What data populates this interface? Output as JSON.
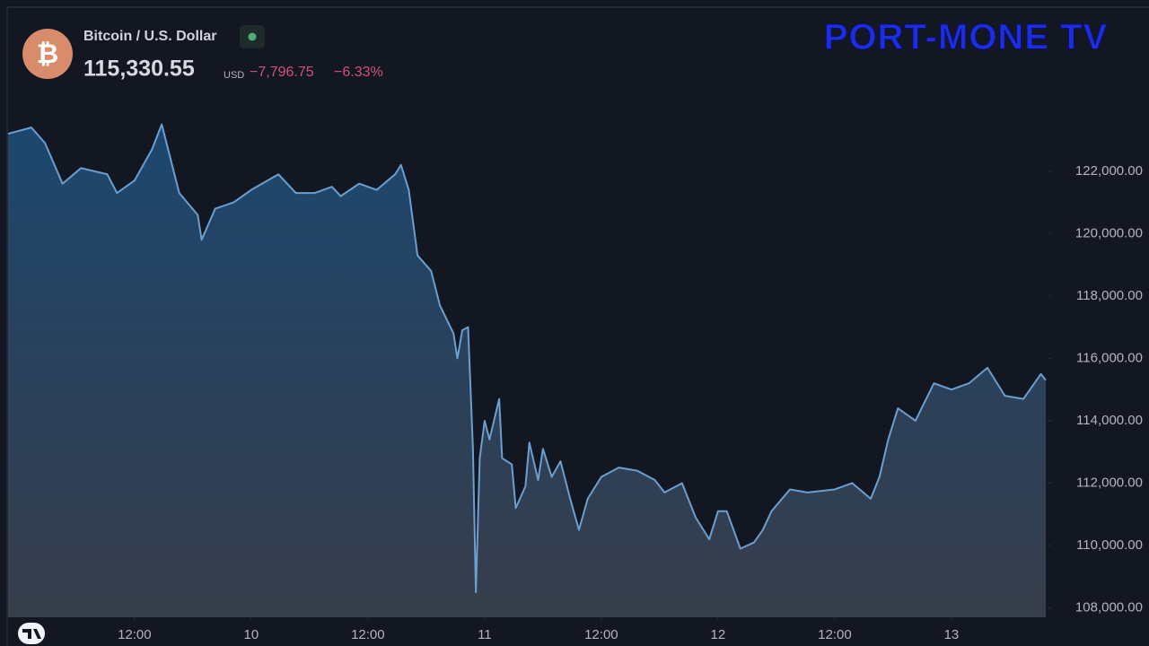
{
  "chart_data": {
    "type": "area",
    "title": "Bitcoin / U.S. Dollar",
    "icon": "₿",
    "price": "115,330.55",
    "currency": "USD",
    "change": "−7,796.75",
    "change_percent": "−6.33%",
    "logo": "PORT-MONE TV",
    "color": "#6a9fd0",
    "x": [
      -1.0,
      1.4,
      2.8,
      4.6,
      6.5,
      9.2,
      10.2,
      12.0,
      13.8,
      14.8,
      15.7,
      16.6,
      18.5,
      18.9,
      20.3,
      22.2,
      24.0,
      26.8,
      28.6,
      30.5,
      32.3,
      33.2,
      35.1,
      36.9,
      38.8,
      39.4,
      40.2,
      41.1,
      42.5,
      43.4,
      44.8,
      45.2,
      45.7,
      46.3,
      46.8,
      47.1,
      47.5,
      48.0,
      48.5,
      49.5,
      49.8,
      50.8,
      51.2,
      52.2,
      52.6,
      53.5,
      54.0,
      54.9,
      55.8,
      56.8,
      57.7,
      58.6,
      60.0,
      61.8,
      63.7,
      65.5,
      66.5,
      68.3,
      69.7,
      71.1,
      72.0,
      72.9,
      74.3,
      75.7,
      76.6,
      77.5,
      79.4,
      81.2,
      84.0,
      85.8,
      87.7,
      88.6,
      89.5,
      90.5,
      92.3,
      94.2,
      96.0,
      97.8,
      99.7,
      101.5,
      103.4,
      105.2,
      105.7
    ],
    "values": [
      123200,
      123400,
      122900,
      121600,
      122100,
      121900,
      121300,
      121700,
      122700,
      123500,
      122400,
      121300,
      120600,
      119800,
      120800,
      121000,
      121400,
      121900,
      121300,
      121300,
      121500,
      121200,
      121600,
      121400,
      121900,
      122200,
      121400,
      119300,
      118800,
      117700,
      116800,
      116000,
      116900,
      117000,
      113100,
      108500,
      112800,
      114000,
      113400,
      114700,
      112800,
      112600,
      111200,
      111900,
      113300,
      112100,
      113100,
      112200,
      112700,
      111500,
      110500,
      111500,
      112200,
      112500,
      112400,
      112100,
      111700,
      112000,
      110900,
      110200,
      111100,
      111100,
      109900,
      110100,
      110500,
      111100,
      111800,
      111700,
      111800,
      112000,
      111500,
      112200,
      113400,
      114400,
      114000,
      115200,
      115000,
      115200,
      115700,
      114800,
      114700,
      115500,
      115300
    ],
    "xlim": [
      -1.0,
      105.7
    ],
    "xticks": [
      {
        "value": 12,
        "label": "12:00"
      },
      {
        "value": 24,
        "label": "10"
      },
      {
        "value": 36,
        "label": "12:00"
      },
      {
        "value": 48,
        "label": "11"
      },
      {
        "value": 60,
        "label": "12:00"
      },
      {
        "value": 72,
        "label": "12"
      },
      {
        "value": 84,
        "label": "12:00"
      },
      {
        "value": 96,
        "label": "13"
      }
    ],
    "ylim": [
      107700,
      127200
    ],
    "yticks": [
      {
        "value": 108000,
        "label": "108,000.00"
      },
      {
        "value": 110000,
        "label": "110,000.00"
      },
      {
        "value": 112000,
        "label": "112,000.00"
      },
      {
        "value": 114000,
        "label": "114,000.00"
      },
      {
        "value": 116000,
        "label": "116,000.00"
      },
      {
        "value": 118000,
        "label": "118,000.00"
      },
      {
        "value": 120000,
        "label": "120,000.00"
      },
      {
        "value": 122000,
        "label": "122,000.00"
      }
    ]
  }
}
